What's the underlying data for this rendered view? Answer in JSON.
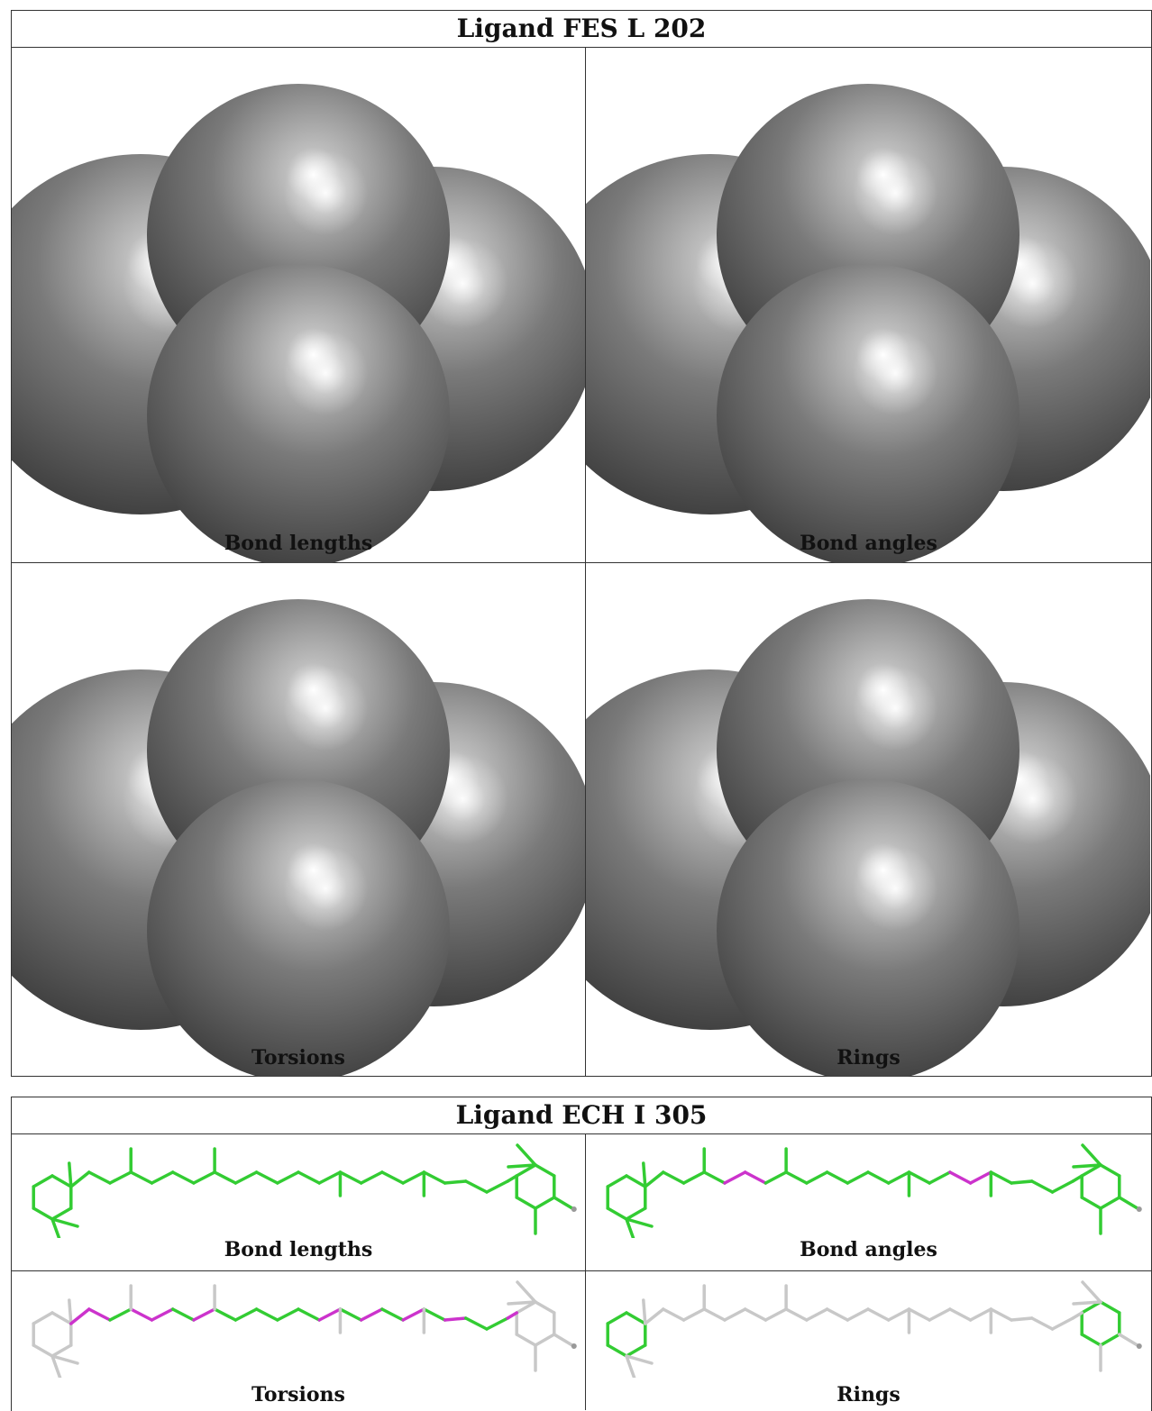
{
  "ligand1": {
    "title": "Ligand FES L 202",
    "panels": [
      {
        "caption": "Bond lengths"
      },
      {
        "caption": "Bond angles"
      },
      {
        "caption": "Torsions"
      },
      {
        "caption": "Rings"
      }
    ]
  },
  "ligand2": {
    "title": "Ligand ECH I 305",
    "panels": [
      {
        "caption": "Bond lengths"
      },
      {
        "caption": "Bond angles"
      },
      {
        "caption": "Torsions"
      },
      {
        "caption": "Rings"
      }
    ]
  },
  "colors": {
    "sphere": "#6e6e6e",
    "pass": "#33cc33",
    "outlier": "#cc33cc",
    "neutral": "#c8c8c8"
  }
}
